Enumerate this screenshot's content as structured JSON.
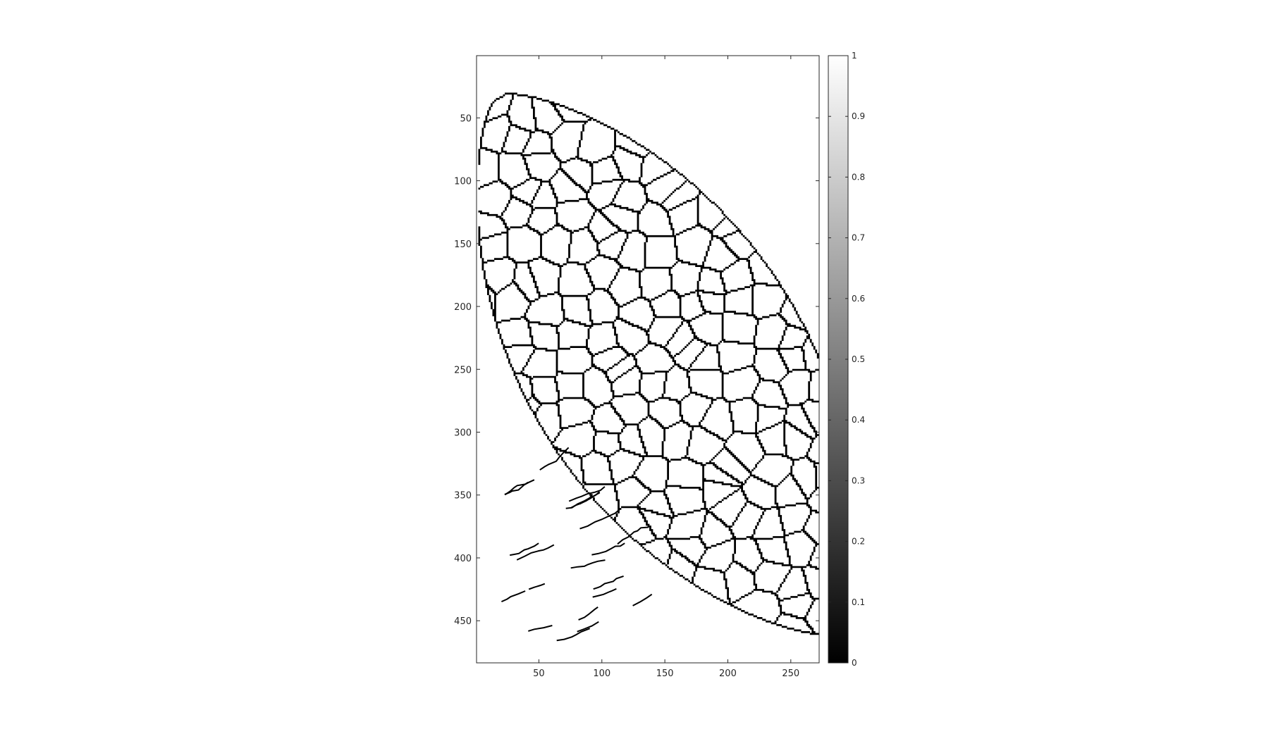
{
  "chart_data": {
    "type": "heatmap",
    "title": "",
    "xlabel": "",
    "ylabel": "",
    "xlim": [
      0.5,
      272.5
    ],
    "ylim": [
      0.5,
      483.5
    ],
    "y_reversed": true,
    "x_ticks": [
      50,
      100,
      150,
      200,
      250
    ],
    "y_ticks": [
      50,
      100,
      150,
      200,
      250,
      300,
      350,
      400,
      450
    ],
    "grid": false,
    "colormap": "gray",
    "colorbar": {
      "position": "right",
      "range": [
        0,
        1
      ],
      "ticks": [
        0,
        0.1,
        0.2,
        0.3,
        0.4,
        0.5,
        0.6,
        0.7,
        0.8,
        0.9,
        1
      ],
      "tick_labels": [
        "0",
        "0.1",
        "0.2",
        "0.3",
        "0.4",
        "0.5",
        "0.6",
        "0.7",
        "0.8",
        "0.9",
        "1"
      ]
    },
    "image": {
      "description_values": "binary edge map (0 = edge, 1 = background) of a lemon-shaped cellular network",
      "background_value": 1,
      "edge_value": 0,
      "shape_center": [
        150,
        245
      ],
      "shape_semi_axes": [
        105,
        250
      ],
      "shape_tilt_deg": -32
    }
  }
}
